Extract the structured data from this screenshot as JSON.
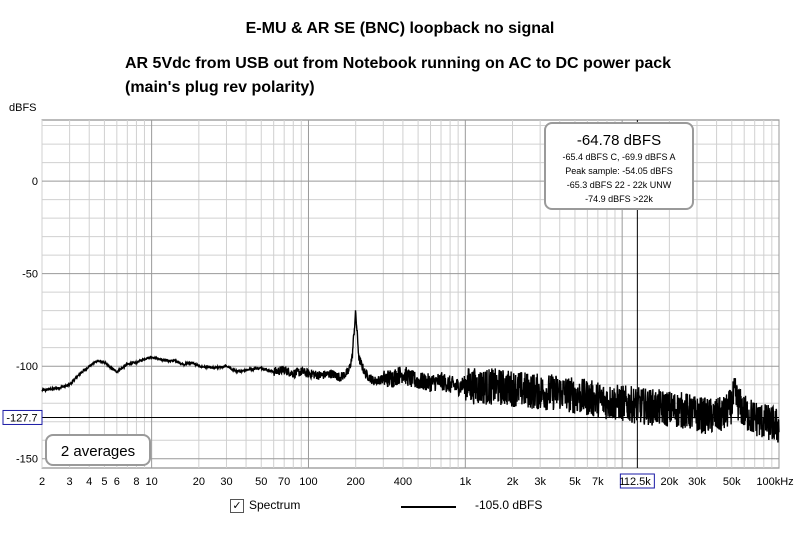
{
  "title": "E-MU & AR SE (BNC) loopback no signal",
  "subtitle_line1": "AR 5Vdc from USB out from Notebook running on AC to DC power pack",
  "subtitle_line2": "(main's plug rev polarity)",
  "ylabel": "dBFS",
  "stats_box": {
    "main": "-64.78 dBFS",
    "lines": [
      "-65.4 dBFS C, -69.9 dBFS A",
      "Peak sample: -54.05 dBFS",
      "-65.3 dBFS 22 - 22k UNW",
      "-74.9 dBFS >22k"
    ]
  },
  "averages_label": "2 averages",
  "cursor": {
    "y_label": "-127.7",
    "x_label": "12.5k"
  },
  "legend": {
    "checkbox_checked": true,
    "series_label": "Spectrum",
    "value_label": "-105.0 dBFS"
  },
  "colors": {
    "trace": "#000000",
    "grid_major": "#999999",
    "grid_minor": "#d0d0d0",
    "cursor_label": "#1a1aa6",
    "plot_bg": "#ffffff"
  },
  "chart_data": {
    "type": "line",
    "x_scale": "log",
    "xlim": [
      2,
      100000
    ],
    "ylim": [
      -155,
      33
    ],
    "y_ticks": [
      0,
      -50,
      -100,
      -150
    ],
    "x_tick_labels": [
      {
        "v": 2,
        "t": "2"
      },
      {
        "v": 3,
        "t": "3"
      },
      {
        "v": 4,
        "t": "4"
      },
      {
        "v": 5,
        "t": "5"
      },
      {
        "v": 6,
        "t": "6"
      },
      {
        "v": 8,
        "t": "8"
      },
      {
        "v": 10,
        "t": "10"
      },
      {
        "v": 20,
        "t": "20"
      },
      {
        "v": 30,
        "t": "30"
      },
      {
        "v": 50,
        "t": "50"
      },
      {
        "v": 70,
        "t": "70"
      },
      {
        "v": 100,
        "t": "100"
      },
      {
        "v": 200,
        "t": "200"
      },
      {
        "v": 400,
        "t": "400"
      },
      {
        "v": 1000,
        "t": "1k"
      },
      {
        "v": 2000,
        "t": "2k"
      },
      {
        "v": 3000,
        "t": "3k"
      },
      {
        "v": 5000,
        "t": "5k"
      },
      {
        "v": 7000,
        "t": "7k"
      },
      {
        "v": 10000,
        "t": "1"
      },
      {
        "v": 20000,
        "t": "20k"
      },
      {
        "v": 30000,
        "t": "30k"
      },
      {
        "v": 50000,
        "t": "50k"
      },
      {
        "v": 100000,
        "t": "100kHz"
      }
    ],
    "grid": true,
    "series": [
      {
        "name": "Spectrum",
        "x": [
          2,
          2.5,
          3,
          3.5,
          4,
          4.5,
          5,
          5.5,
          6,
          7,
          8,
          9,
          10,
          11,
          12,
          14,
          16,
          18,
          20,
          25,
          30,
          35,
          40,
          50,
          60,
          70,
          80,
          90,
          100,
          120,
          140,
          160,
          180,
          190,
          195,
          200,
          205,
          210,
          230,
          260,
          300,
          350,
          400,
          450,
          500,
          600,
          700,
          800,
          900,
          1000,
          1200,
          1500,
          2000,
          2500,
          3000,
          4000,
          5000,
          6000,
          7000,
          8000,
          10000,
          12000,
          15000,
          20000,
          25000,
          30000,
          35000,
          40000,
          45000,
          50000,
          52000,
          55000,
          60000,
          70000,
          80000,
          90000,
          100000
        ],
        "y": [
          -113,
          -112,
          -110,
          -104,
          -100,
          -97,
          -98,
          -101,
          -103,
          -99,
          -98,
          -96,
          -95,
          -96,
          -97,
          -97,
          -99,
          -98,
          -100,
          -101,
          -100,
          -103,
          -102,
          -101,
          -103,
          -102,
          -104,
          -103,
          -104,
          -105,
          -104,
          -106,
          -103,
          -95,
          -82,
          -71,
          -84,
          -96,
          -104,
          -108,
          -107,
          -106,
          -104,
          -107,
          -108,
          -109,
          -108,
          -110,
          -111,
          -110,
          -111,
          -111,
          -112,
          -113,
          -114,
          -114,
          -116,
          -117,
          -118,
          -119,
          -120,
          -121,
          -122,
          -123,
          -124,
          -126,
          -127,
          -127,
          -126,
          -121,
          -115,
          -120,
          -125,
          -128,
          -130,
          -131,
          -133
        ]
      }
    ]
  }
}
